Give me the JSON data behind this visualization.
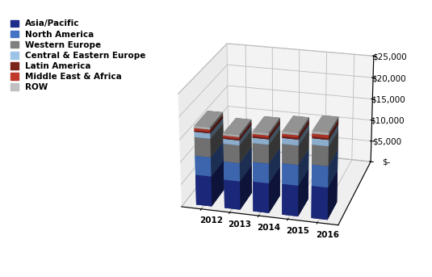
{
  "years": [
    "2012",
    "2013",
    "2014",
    "2015",
    "2016"
  ],
  "series": [
    {
      "label": "Asia/Pacific",
      "color": "#1f2d8a",
      "values": [
        6800,
        6400,
        6700,
        6900,
        7200
      ]
    },
    {
      "label": "North America",
      "color": "#4472c4",
      "values": [
        4300,
        4100,
        4400,
        4600,
        4700
      ]
    },
    {
      "label": "Western Europe",
      "color": "#7f7f7f",
      "values": [
        4100,
        3900,
        4100,
        4200,
        4300
      ]
    },
    {
      "label": "Central & Eastern Europe",
      "color": "#9dc3e6",
      "values": [
        1200,
        1100,
        1200,
        1300,
        1400
      ]
    },
    {
      "label": "Latin America",
      "color": "#7b241c",
      "values": [
        300,
        280,
        300,
        350,
        350
      ]
    },
    {
      "label": "Middle East & Africa",
      "color": "#c0392b",
      "values": [
        500,
        450,
        520,
        560,
        650
      ]
    },
    {
      "label": "ROW",
      "color": "#c0c0c0",
      "values": [
        500,
        470,
        500,
        530,
        570
      ]
    }
  ],
  "zlim": [
    0,
    25000
  ],
  "zticks": [
    0,
    5000,
    10000,
    15000,
    20000,
    25000
  ],
  "ztick_labels": [
    "$-",
    "$5,000",
    "$10,000",
    "$15,000",
    "$20,000",
    "$25,000"
  ],
  "pane_xy_color": "#d8d8d8",
  "pane_xz_color": "#e8e8e8",
  "pane_yz_color": "#e0e0e0",
  "bar_width": 0.55,
  "bar_depth": 0.5,
  "elev": 22,
  "azim": -75,
  "fig_width": 5.35,
  "fig_height": 3.43,
  "legend_fontsize": 7.5,
  "tick_fontsize": 7.5
}
